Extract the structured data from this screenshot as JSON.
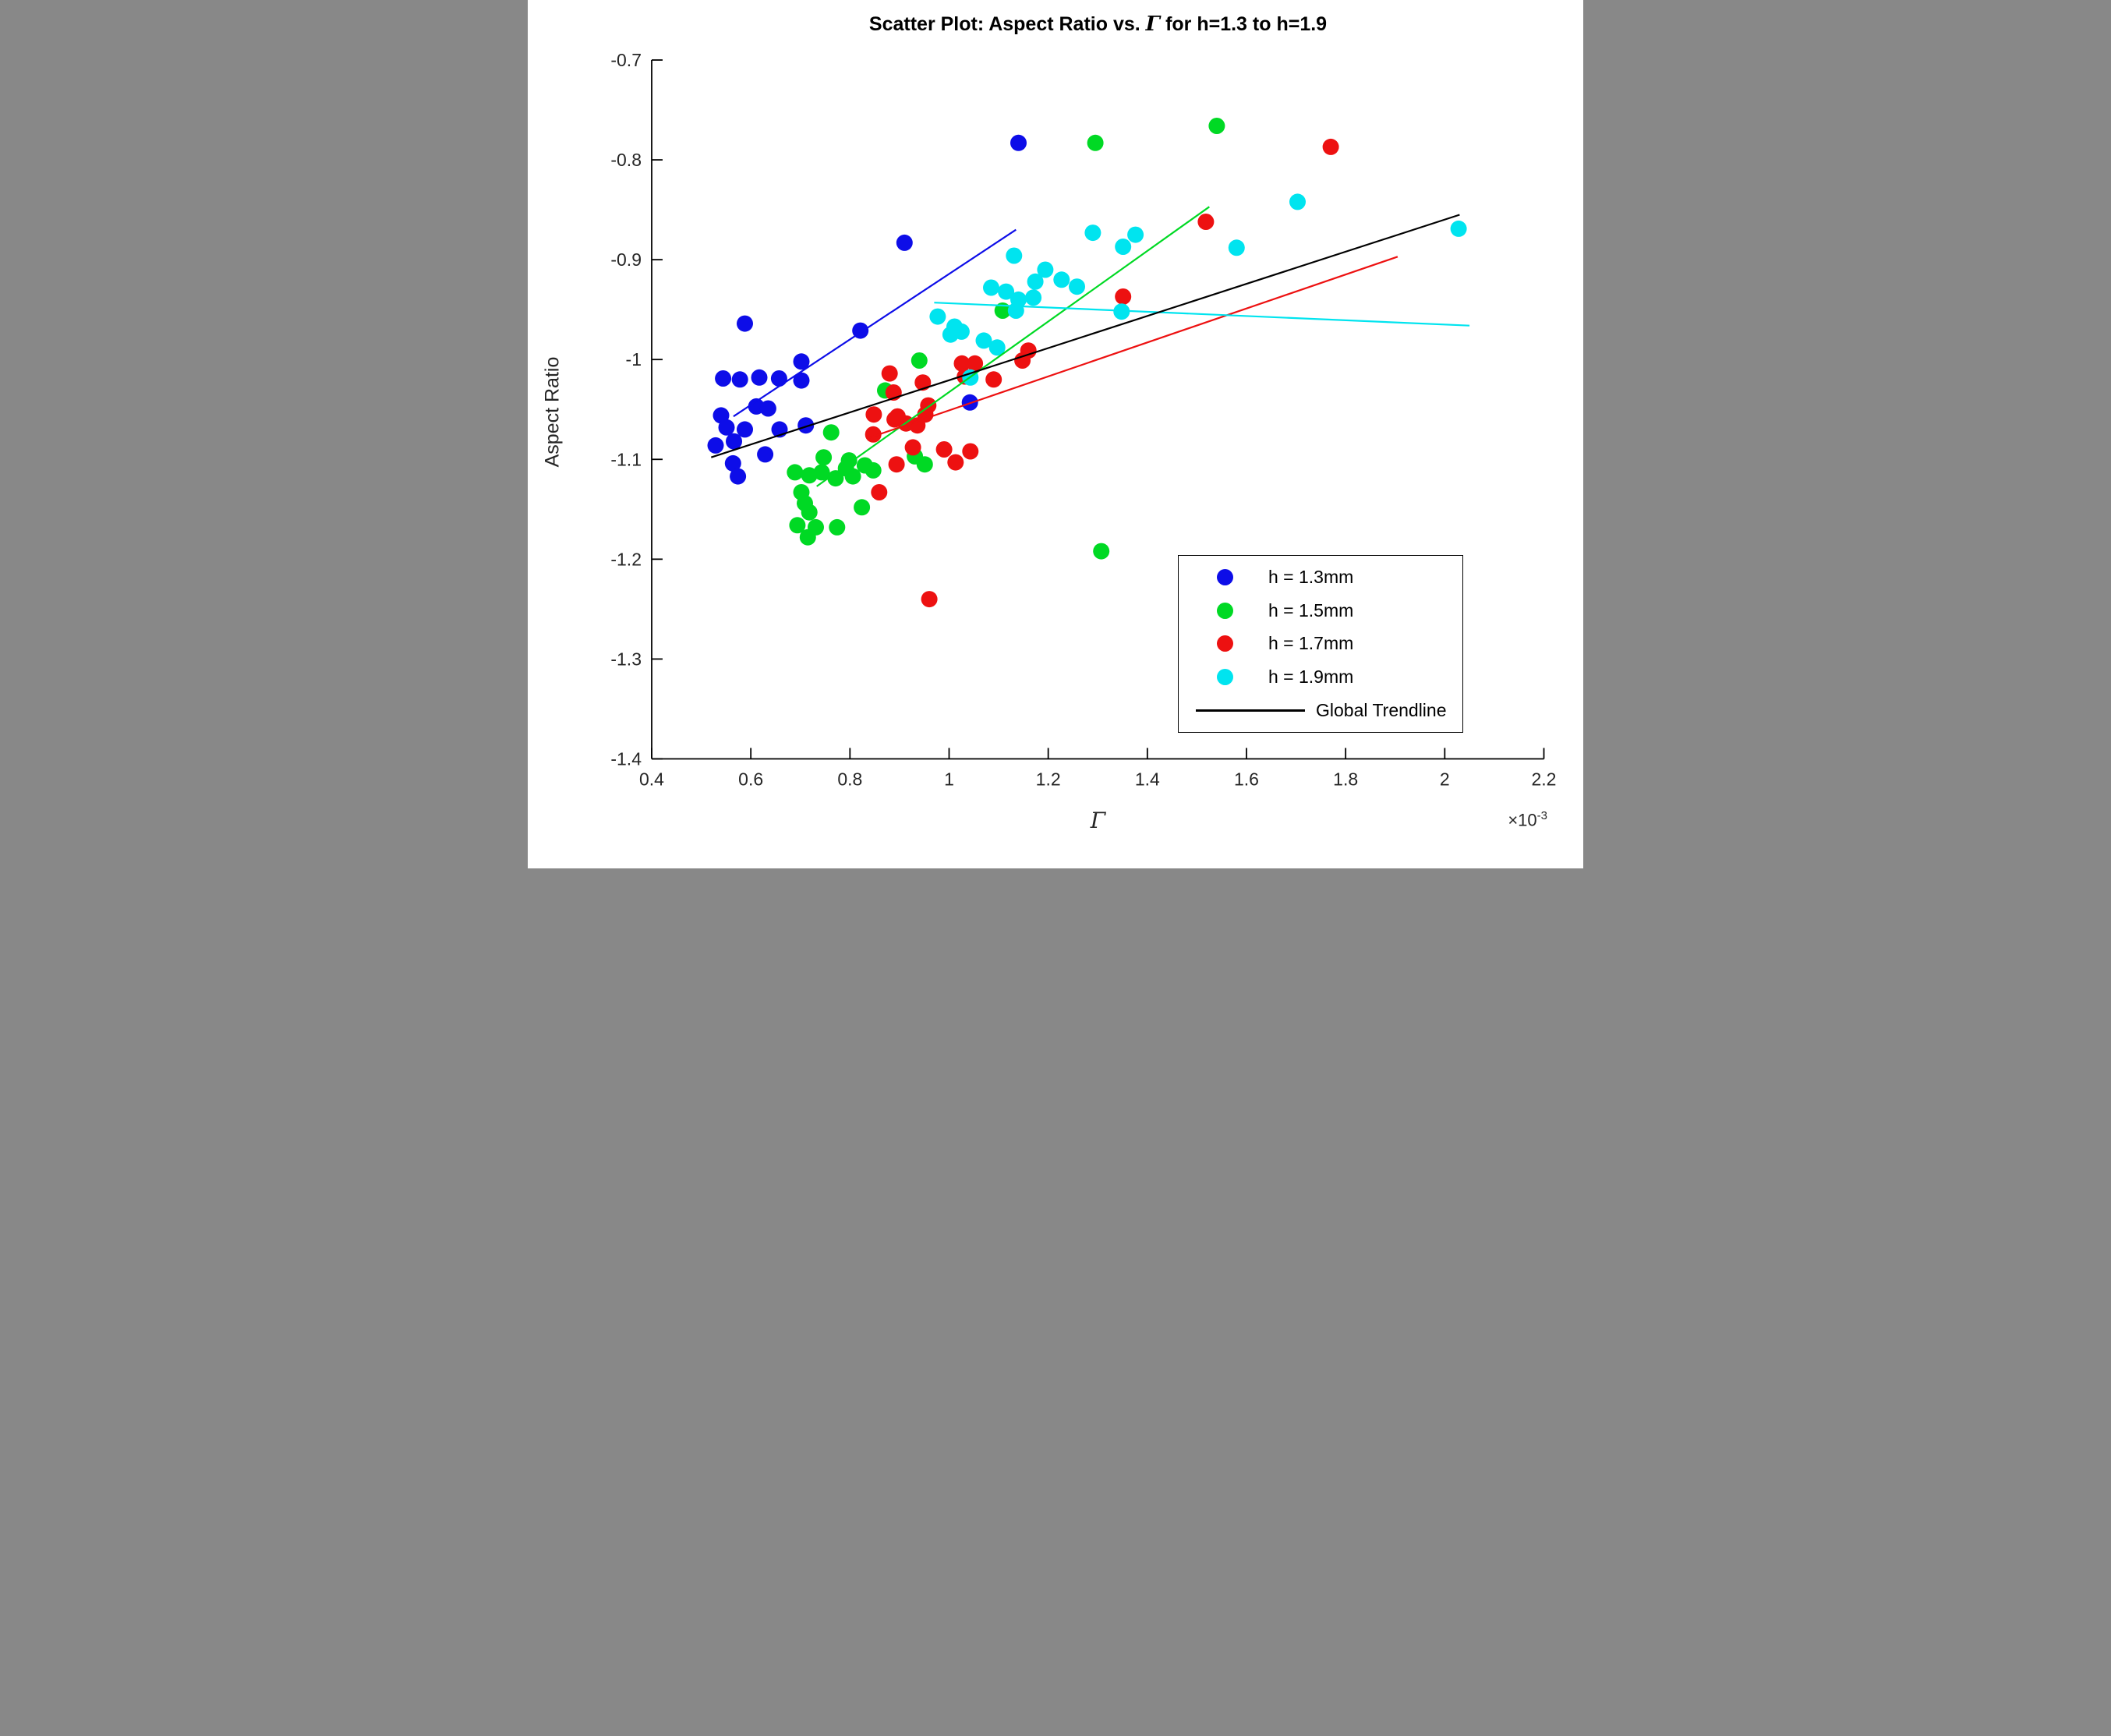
{
  "title": {
    "pre": "Scatter Plot: Aspect Ratio vs. ",
    "gamma": "Γ",
    "post": " for h=1.3 to h=1.9"
  },
  "chart_data": {
    "type": "scatter",
    "title": "Scatter Plot: Aspect Ratio vs. Γ for h=1.3 to h=1.9",
    "xlabel": "Γ",
    "ylabel": "Aspect Ratio",
    "x_multiplier_base": "×10",
    "x_multiplier_exp": "-3",
    "x_unit_multiplier": 0.001,
    "xlim": [
      0.4,
      2.2
    ],
    "ylim": [
      -1.4,
      -0.7
    ],
    "grid": false,
    "box": false,
    "legend_position": "lower right",
    "x_ticks": [
      0.4,
      0.6,
      0.8,
      1.0,
      1.2,
      1.4,
      1.6,
      1.8,
      2.0,
      2.2
    ],
    "x_tick_labels": [
      "0.4",
      "0.6",
      "0.8",
      "1",
      "1.2",
      "1.4",
      "1.6",
      "1.8",
      "2",
      "2.2"
    ],
    "y_ticks": [
      -0.7,
      -0.8,
      -0.9,
      -1.0,
      -1.1,
      -1.2,
      -1.3,
      -1.4
    ],
    "y_tick_labels": [
      "-0.7",
      "-0.8",
      "-0.9",
      "-1",
      "-1.1",
      "-1.2",
      "-1.3",
      "-1.4"
    ],
    "series": [
      {
        "name": "h = 1.3mm",
        "color": "#0d0de8",
        "points": [
          [
            0.91,
            -0.883
          ],
          [
            1.14,
            -0.783
          ],
          [
            0.588,
            -0.964
          ],
          [
            0.821,
            -0.971
          ],
          [
            0.702,
            -1.002
          ],
          [
            0.544,
            -1.019
          ],
          [
            0.578,
            -1.02
          ],
          [
            0.617,
            -1.018
          ],
          [
            0.657,
            -1.019
          ],
          [
            0.702,
            -1.021
          ],
          [
            0.611,
            -1.047
          ],
          [
            0.635,
            -1.049
          ],
          [
            0.54,
            -1.056
          ],
          [
            0.551,
            -1.068
          ],
          [
            0.588,
            -1.07
          ],
          [
            0.658,
            -1.07
          ],
          [
            0.711,
            -1.066
          ],
          [
            0.529,
            -1.086
          ],
          [
            0.566,
            -1.082
          ],
          [
            0.629,
            -1.095
          ],
          [
            0.564,
            -1.104
          ],
          [
            0.574,
            -1.117
          ],
          [
            1.042,
            -1.043
          ]
        ]
      },
      {
        "name": "h = 1.5mm",
        "color": "#00d924",
        "points": [
          [
            1.295,
            -0.783
          ],
          [
            1.54,
            -0.766
          ],
          [
            0.871,
            -1.031
          ],
          [
            0.94,
            -1.001
          ],
          [
            1.108,
            -0.951
          ],
          [
            0.762,
            -1.073
          ],
          [
            0.747,
            -1.098
          ],
          [
            0.798,
            -1.101
          ],
          [
            0.689,
            -1.113
          ],
          [
            0.718,
            -1.116
          ],
          [
            0.743,
            -1.113
          ],
          [
            0.792,
            -1.109
          ],
          [
            0.806,
            -1.117
          ],
          [
            0.771,
            -1.119
          ],
          [
            0.83,
            -1.106
          ],
          [
            0.847,
            -1.111
          ],
          [
            0.702,
            -1.133
          ],
          [
            0.709,
            -1.144
          ],
          [
            0.718,
            -1.153
          ],
          [
            0.694,
            -1.166
          ],
          [
            0.731,
            -1.168
          ],
          [
            0.715,
            -1.178
          ],
          [
            0.774,
            -1.168
          ],
          [
            0.824,
            -1.148
          ],
          [
            0.931,
            -1.097
          ],
          [
            0.951,
            -1.105
          ],
          [
            1.307,
            -1.192
          ]
        ]
      },
      {
        "name": "h = 1.7mm",
        "color": "#ed1111",
        "points": [
          [
            1.77,
            -0.787
          ],
          [
            1.518,
            -0.862
          ],
          [
            1.351,
            -0.937
          ],
          [
            0.88,
            -1.014
          ],
          [
            0.888,
            -1.033
          ],
          [
            1.026,
            -1.004
          ],
          [
            1.052,
            -1.004
          ],
          [
            1.032,
            -1.017
          ],
          [
            1.16,
            -0.991
          ],
          [
            1.148,
            -1.001
          ],
          [
            1.09,
            -1.02
          ],
          [
            0.947,
            -1.023
          ],
          [
            0.958,
            -1.046
          ],
          [
            0.952,
            -1.055
          ],
          [
            0.89,
            -1.06
          ],
          [
            0.913,
            -1.064
          ],
          [
            0.936,
            -1.066
          ],
          [
            0.896,
            -1.057
          ],
          [
            0.927,
            -1.088
          ],
          [
            0.894,
            -1.105
          ],
          [
            0.99,
            -1.09
          ],
          [
            1.013,
            -1.103
          ],
          [
            1.043,
            -1.092
          ],
          [
            0.848,
            -1.055
          ],
          [
            0.847,
            -1.075
          ],
          [
            0.859,
            -1.133
          ],
          [
            0.96,
            -1.24
          ]
        ]
      },
      {
        "name": "h = 1.9mm",
        "color": "#00e4ef",
        "points": [
          [
            1.131,
            -0.896
          ],
          [
            1.194,
            -0.91
          ],
          [
            1.174,
            -0.922
          ],
          [
            1.227,
            -0.92
          ],
          [
            1.258,
            -0.927
          ],
          [
            1.085,
            -0.928
          ],
          [
            1.115,
            -0.932
          ],
          [
            1.14,
            -0.94
          ],
          [
            1.17,
            -0.938
          ],
          [
            1.135,
            -0.951
          ],
          [
            0.977,
            -0.957
          ],
          [
            1.011,
            -0.967
          ],
          [
            1.025,
            -0.972
          ],
          [
            1.07,
            -0.981
          ],
          [
            1.097,
            -0.988
          ],
          [
            1.043,
            -1.018
          ],
          [
            1.003,
            -0.975
          ],
          [
            1.29,
            -0.873
          ],
          [
            1.351,
            -0.887
          ],
          [
            1.376,
            -0.875
          ],
          [
            1.58,
            -0.888
          ],
          [
            1.348,
            -0.952
          ],
          [
            1.703,
            -0.842
          ],
          [
            2.028,
            -0.869
          ]
        ]
      }
    ],
    "trendlines": [
      {
        "name": "h=1.3 fit",
        "color": "#0d0de8",
        "from": [
          0.565,
          -1.057
        ],
        "to": [
          1.135,
          -0.87
        ]
      },
      {
        "name": "h=1.5 fit",
        "color": "#00d924",
        "from": [
          0.733,
          -1.127
        ],
        "to": [
          1.525,
          -0.847
        ]
      },
      {
        "name": "h=1.7 fit",
        "color": "#ed1111",
        "from": [
          0.835,
          -1.079
        ],
        "to": [
          1.905,
          -0.897
        ]
      },
      {
        "name": "h=1.9 fit",
        "color": "#00e4ef",
        "from": [
          0.97,
          -0.943
        ],
        "to": [
          2.05,
          -0.966
        ]
      },
      {
        "name": "Global Trendline",
        "color": "#000000",
        "from": [
          0.52,
          -1.098
        ],
        "to": [
          2.03,
          -0.855
        ]
      }
    ],
    "legend": {
      "entries": [
        {
          "label": "h = 1.3mm",
          "marker": "dot",
          "color": "#0d0de8"
        },
        {
          "label": "h = 1.5mm",
          "marker": "dot",
          "color": "#00d924"
        },
        {
          "label": "h = 1.7mm",
          "marker": "dot",
          "color": "#ed1111"
        },
        {
          "label": "h = 1.9mm",
          "marker": "dot",
          "color": "#00e4ef"
        },
        {
          "label": "Global Trendline",
          "marker": "line",
          "color": "#000000"
        }
      ]
    }
  },
  "colors": {
    "axes": "#262626",
    "spine": "#000000",
    "background": "#ffffff"
  }
}
